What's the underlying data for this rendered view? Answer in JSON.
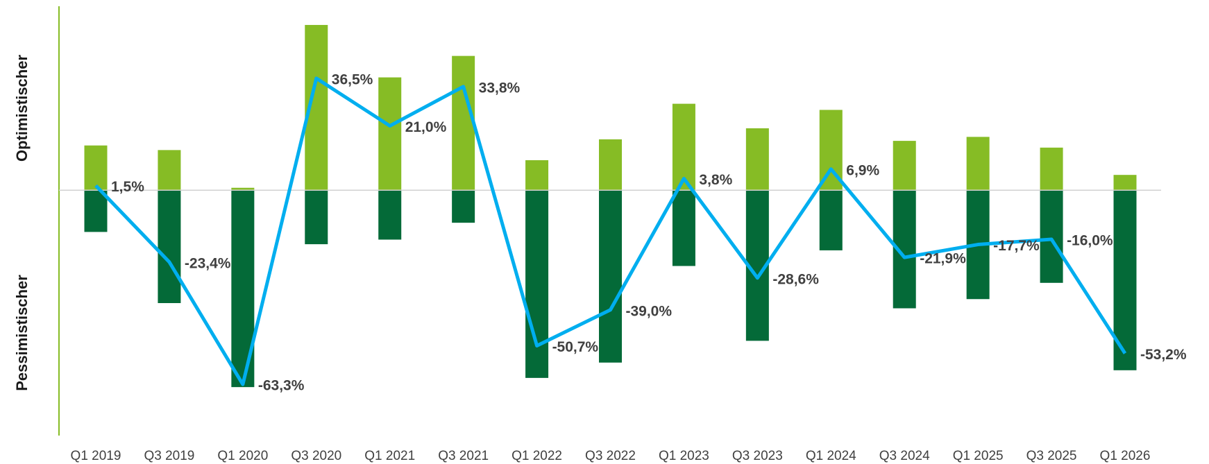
{
  "chart_data": {
    "type": "bar",
    "y_label_top": "Optimistischer",
    "y_label_bottom": "Pessimistischer",
    "categories": [
      "Q1 2019",
      "Q3 2019",
      "Q1 2020",
      "Q3 2020",
      "Q1 2021",
      "Q3 2021",
      "Q1 2022",
      "Q3 2022",
      "Q1 2023",
      "Q3 2023",
      "Q1 2024",
      "Q3 2024",
      "Q1 2025",
      "Q3 2025",
      "Q1 2026"
    ],
    "series": [
      {
        "type": "bar",
        "color": "#86bc25",
        "values": [
          14.6,
          13.1,
          0.8,
          53.9,
          36.8,
          43.8,
          9.8,
          16.6,
          28.2,
          20.2,
          26.2,
          16.1,
          17.4,
          13.9,
          5.0
        ]
      },
      {
        "type": "bar",
        "color": "#046a38",
        "values": [
          -13.6,
          -36.8,
          -64.2,
          -17.6,
          -16.1,
          -10.6,
          -61.2,
          -56.2,
          -24.7,
          -49.1,
          -19.6,
          -38.5,
          -35.5,
          -30.2,
          -58.7
        ]
      },
      {
        "type": "line",
        "color": "#00aeef",
        "values": [
          1.5,
          -23.4,
          -63.3,
          36.5,
          21.0,
          33.8,
          -50.7,
          -39.0,
          3.8,
          -28.6,
          6.9,
          -21.9,
          -17.7,
          -16.0,
          -53.2
        ],
        "value_labels": [
          "1,5%",
          "-23,4%",
          "-63,3%",
          "36,5%",
          "21,0%",
          "33,8%",
          "-50,7%",
          "-39,0%",
          "3,8%",
          "-28,6%",
          "6,9%",
          "-21,9%",
          "-17,7%",
          "-16,0%",
          "-53,2%"
        ]
      }
    ],
    "ylim": [
      -80,
      60
    ]
  }
}
